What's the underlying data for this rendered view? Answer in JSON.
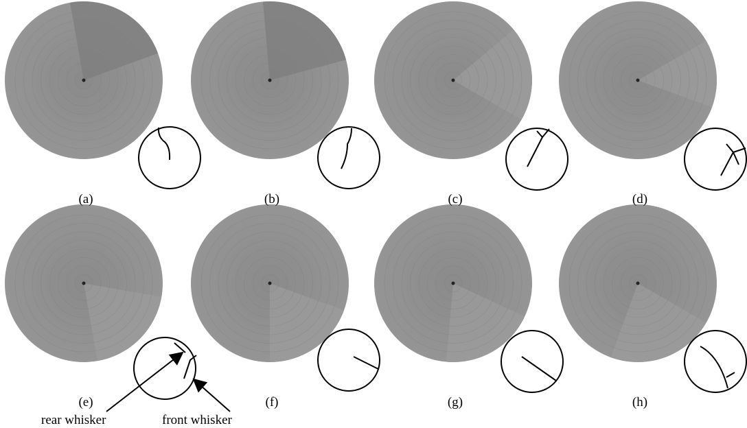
{
  "panels": [
    "(a)",
    "(b)",
    "(c)",
    "(d)",
    "(e)",
    "(f)",
    "(g)",
    "(h)"
  ],
  "annotations": {
    "rear": "rear whisker",
    "front": "front whisker"
  }
}
